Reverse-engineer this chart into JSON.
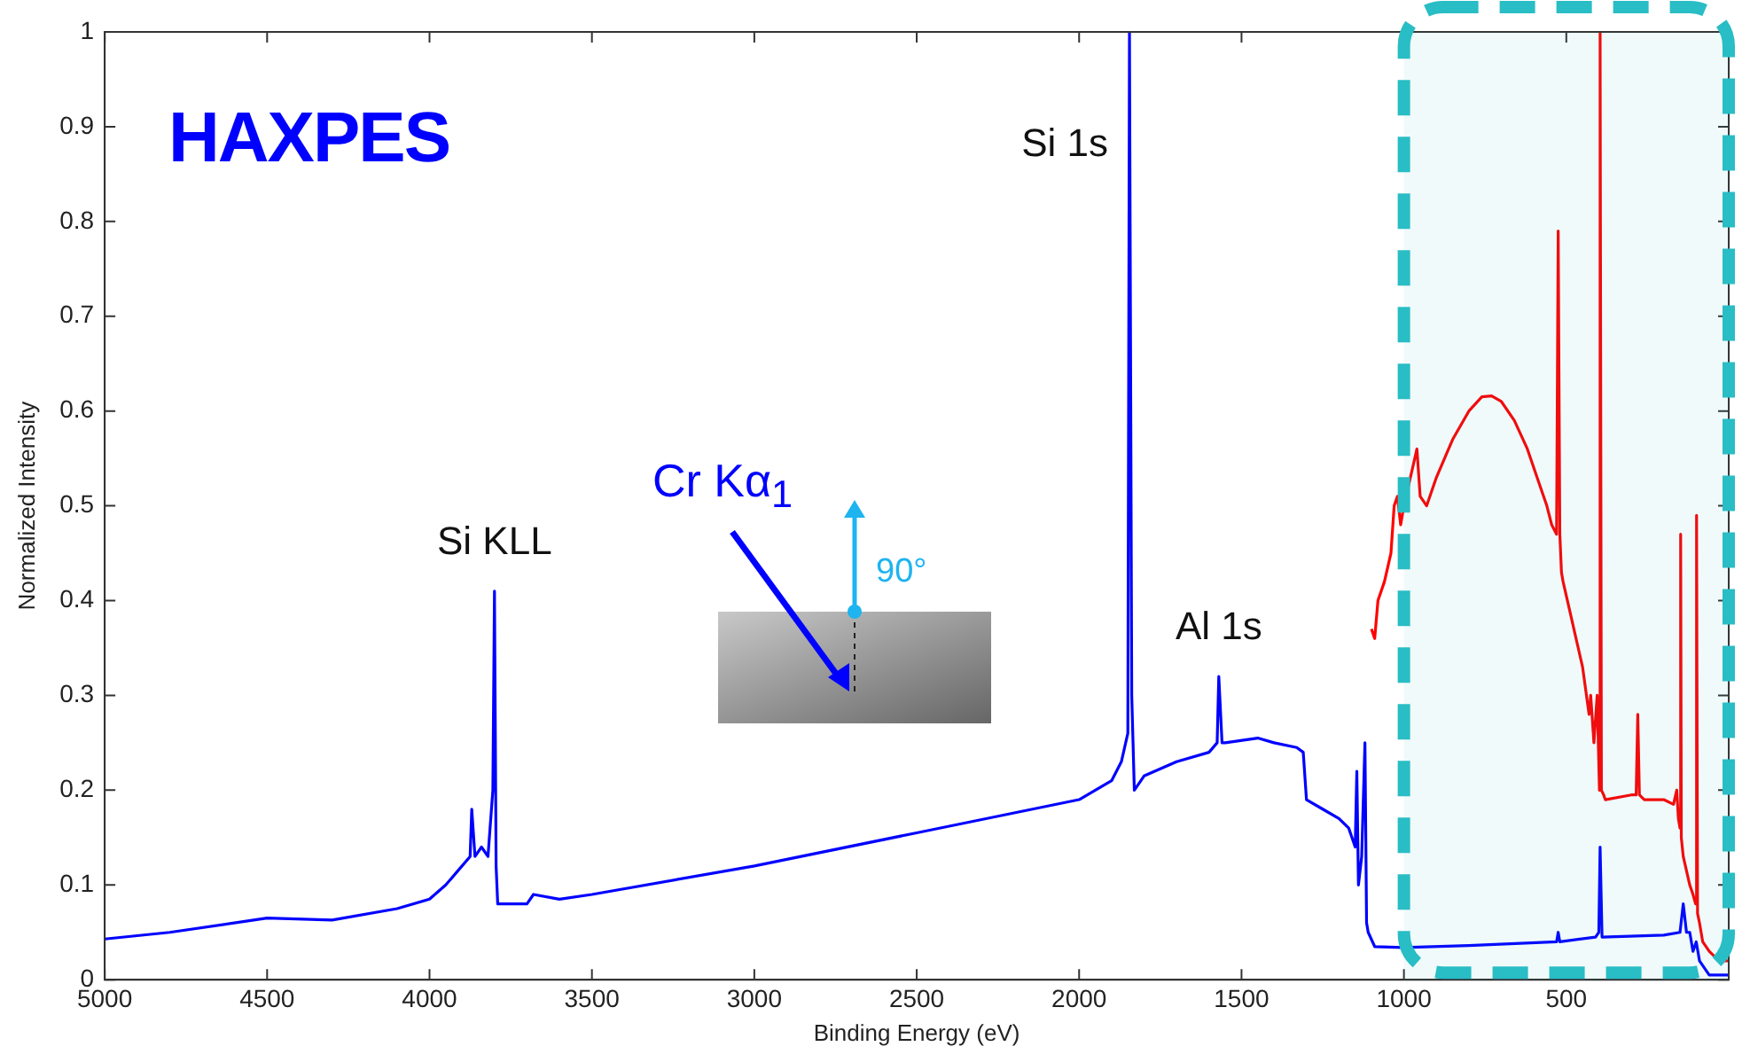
{
  "chart_data": {
    "type": "line",
    "xlabel": "Binding Energy (eV)",
    "ylabel": "Normalized Intensity",
    "xlim": [
      5000,
      0
    ],
    "ylim": [
      0,
      1
    ],
    "xticks": [
      5000,
      4500,
      4000,
      3500,
      3000,
      2500,
      2000,
      1500,
      1000,
      500,
      {
        "value": 0,
        "label": null
      }
    ],
    "yticks": [
      0,
      0.1,
      0.2,
      0.3,
      0.4,
      0.5,
      0.6,
      0.7,
      0.8,
      0.9,
      1
    ],
    "bands": [
      {
        "axis": "x",
        "from": 1000,
        "to": 0,
        "color": "#29bdc5"
      }
    ],
    "grid": false,
    "legend": false,
    "marker": "none",
    "line_style": "solid",
    "series": [
      {
        "color": "#0000ff",
        "x": [
          5000,
          4800,
          4500,
          4300,
          4100,
          4000,
          3950,
          3900,
          3875,
          3870,
          3860,
          3840,
          3820,
          3805,
          3800,
          3795,
          3790,
          3700,
          3680,
          3600,
          3500,
          3000,
          2500,
          2000,
          1950,
          1900,
          1870,
          1850,
          1845,
          1838,
          1830,
          1800,
          1700,
          1600,
          1575,
          1570,
          1560,
          1550,
          1450,
          1400,
          1330,
          1310,
          1300,
          1250,
          1200,
          1170,
          1160,
          1150,
          1145,
          1140,
          1130,
          1120,
          1115,
          1110,
          1090,
          1000,
          800,
          530,
          525,
          520,
          410,
          400,
          396,
          390,
          200,
          150,
          140,
          130,
          120,
          110,
          100,
          90,
          60,
          30,
          0
        ],
        "values": [
          0.043,
          0.05,
          0.065,
          0.063,
          0.075,
          0.085,
          0.1,
          0.12,
          0.13,
          0.18,
          0.13,
          0.14,
          0.13,
          0.2,
          0.41,
          0.12,
          0.08,
          0.08,
          0.09,
          0.085,
          0.09,
          0.12,
          0.155,
          0.19,
          0.2,
          0.21,
          0.23,
          0.26,
          1.0,
          0.3,
          0.2,
          0.215,
          0.23,
          0.24,
          0.25,
          0.32,
          0.25,
          0.25,
          0.255,
          0.25,
          0.245,
          0.24,
          0.19,
          0.18,
          0.17,
          0.16,
          0.15,
          0.14,
          0.22,
          0.1,
          0.13,
          0.25,
          0.06,
          0.05,
          0.035,
          0.034,
          0.036,
          0.04,
          0.05,
          0.04,
          0.045,
          0.05,
          0.14,
          0.045,
          0.047,
          0.05,
          0.08,
          0.05,
          0.05,
          0.03,
          0.04,
          0.02,
          0.005,
          0.005,
          0.005
        ]
      },
      {
        "color": "#ff0000",
        "x": [
          1100,
          1090,
          1080,
          1060,
          1040,
          1030,
          1020,
          1010,
          1000,
          960,
          950,
          930,
          900,
          850,
          800,
          760,
          730,
          700,
          660,
          620,
          580,
          560,
          545,
          530,
          525,
          520,
          515,
          510,
          490,
          470,
          450,
          430,
          425,
          415,
          405,
          398,
          396,
          392,
          385,
          380,
          300,
          285,
          280,
          275,
          260,
          200,
          170,
          160,
          155,
          150,
          148,
          146,
          140,
          120,
          110,
          102,
          99,
          96,
          90,
          80,
          60,
          30,
          0
        ],
        "values": [
          0.37,
          0.36,
          0.4,
          0.42,
          0.45,
          0.5,
          0.51,
          0.48,
          0.5,
          0.56,
          0.51,
          0.5,
          0.53,
          0.57,
          0.6,
          0.615,
          0.616,
          0.61,
          0.59,
          0.56,
          0.52,
          0.5,
          0.48,
          0.47,
          0.79,
          0.47,
          0.43,
          0.42,
          0.39,
          0.36,
          0.33,
          0.28,
          0.3,
          0.25,
          0.3,
          0.2,
          1.0,
          0.2,
          0.195,
          0.19,
          0.195,
          0.195,
          0.28,
          0.195,
          0.19,
          0.19,
          0.185,
          0.2,
          0.17,
          0.16,
          0.47,
          0.15,
          0.13,
          0.1,
          0.09,
          0.08,
          0.49,
          0.07,
          0.06,
          0.04,
          0.03,
          0.02,
          0.02
        ]
      }
    ],
    "annotations": [
      "HAXPES",
      {
        "text": "Si 1s",
        "x": 1845,
        "y": 1.0
      },
      {
        "text": "Si KLL",
        "x": 3800,
        "y": 0.41
      },
      {
        "text": "Al 1s",
        "x": 1570,
        "y": 0.32
      },
      "Cr Kα$_{1}$",
      "90°"
    ]
  }
}
